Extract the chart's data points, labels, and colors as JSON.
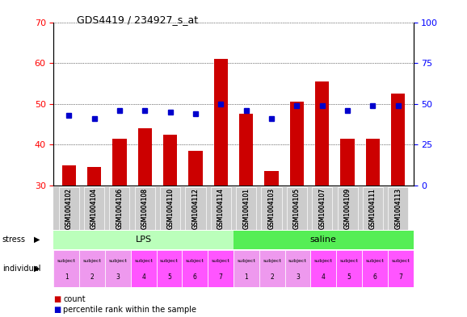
{
  "title": "GDS4419 / 234927_s_at",
  "samples": [
    "GSM1004102",
    "GSM1004104",
    "GSM1004106",
    "GSM1004108",
    "GSM1004110",
    "GSM1004112",
    "GSM1004114",
    "GSM1004101",
    "GSM1004103",
    "GSM1004105",
    "GSM1004107",
    "GSM1004109",
    "GSM1004111",
    "GSM1004113"
  ],
  "counts": [
    35.0,
    34.5,
    41.5,
    44.0,
    42.5,
    38.5,
    61.0,
    47.5,
    33.5,
    50.5,
    55.5,
    41.5,
    41.5,
    52.5
  ],
  "percentile_ranks": [
    43,
    41,
    46,
    46,
    45,
    44,
    50,
    46,
    41,
    49,
    49,
    46,
    49,
    49
  ],
  "ymin": 30,
  "ymax": 70,
  "y_ticks_left": [
    30,
    40,
    50,
    60,
    70
  ],
  "y_ticks_right": [
    0,
    25,
    50,
    75,
    100
  ],
  "bar_color": "#cc0000",
  "dot_color": "#0000cc",
  "stress_lps_color": "#bbffbb",
  "stress_saline_color": "#55ee55",
  "ind_color_light": "#ee99ee",
  "ind_color_dark": "#ff55ff",
  "xtick_bg": "#cccccc",
  "legend_count_color": "#cc0000",
  "legend_pct_color": "#0000cc"
}
